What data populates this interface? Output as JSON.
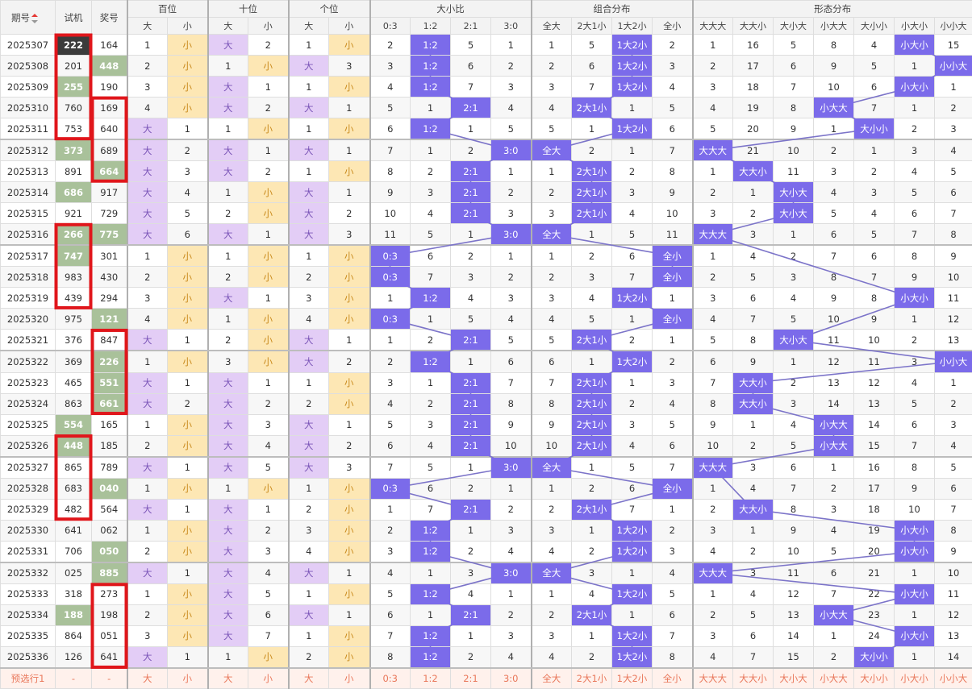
{
  "header": {
    "period_label": "期号",
    "test_label": "试机",
    "prize_label": "奖号",
    "groups": [
      "百位",
      "十位",
      "个位",
      "大小比",
      "组合分布",
      "形态分布"
    ],
    "sub_dx": [
      "大",
      "小"
    ],
    "ratio_cols": [
      "0:3",
      "1:2",
      "2:1",
      "3:0"
    ],
    "combo_cols": [
      "全大",
      "2大1小",
      "1大2小",
      "全小"
    ],
    "form_cols": [
      "大大大",
      "大大小",
      "大小大",
      "小大大",
      "大小小",
      "小大小",
      "小小大"
    ]
  },
  "rows": [
    {
      "p": "2025307",
      "t": "222",
      "z": "164",
      "tc": "dk",
      "zc": "",
      "pos": [
        [
          1,
          0
        ],
        [
          0,
          2
        ],
        [
          1,
          0
        ]
      ],
      "ratio": [
        2,
        "H",
        5,
        1
      ],
      "combo": [
        1,
        5,
        "H",
        2
      ],
      "form": [
        1,
        16,
        5,
        8,
        4,
        "H",
        15
      ]
    },
    {
      "p": "2025308",
      "t": "201",
      "z": "448",
      "tc": "",
      "zc": "g",
      "pos": [
        [
          2,
          0
        ],
        [
          1,
          0
        ],
        [
          0,
          3
        ]
      ],
      "ratio": [
        3,
        "H",
        6,
        2
      ],
      "combo": [
        2,
        6,
        "H",
        3
      ],
      "form": [
        2,
        17,
        6,
        9,
        5,
        1,
        "H"
      ]
    },
    {
      "p": "2025309",
      "t": "255",
      "z": "190",
      "tc": "g",
      "zc": "",
      "pos": [
        [
          3,
          0
        ],
        [
          0,
          1
        ],
        [
          1,
          0
        ]
      ],
      "ratio": [
        4,
        "H",
        7,
        3
      ],
      "combo": [
        3,
        7,
        "H",
        4
      ],
      "form": [
        3,
        18,
        7,
        10,
        6,
        "H",
        1
      ]
    },
    {
      "p": "2025310",
      "t": "760",
      "z": "169",
      "tc": "",
      "zc": "",
      "pos": [
        [
          4,
          0
        ],
        [
          0,
          2
        ],
        [
          0,
          1
        ]
      ],
      "ratio": [
        5,
        1,
        "H",
        4
      ],
      "combo": [
        4,
        "H",
        1,
        5
      ],
      "form": [
        4,
        19,
        8,
        "H",
        7,
        1,
        2
      ]
    },
    {
      "p": "2025311",
      "t": "753",
      "z": "640",
      "tc": "",
      "zc": "",
      "pos": [
        [
          0,
          1
        ],
        [
          1,
          0
        ],
        [
          1,
          0
        ]
      ],
      "ratio": [
        6,
        "H",
        1,
        5
      ],
      "combo": [
        5,
        1,
        "H",
        6
      ],
      "form": [
        5,
        20,
        9,
        1,
        "H",
        2,
        3
      ]
    },
    {
      "p": "2025312",
      "t": "373",
      "z": "689",
      "tc": "g",
      "zc": "",
      "pos": [
        [
          0,
          2
        ],
        [
          0,
          1
        ],
        [
          0,
          1
        ]
      ],
      "ratio": [
        7,
        1,
        2,
        "H"
      ],
      "combo": [
        "H",
        2,
        1,
        7
      ],
      "form": [
        "H",
        21,
        10,
        2,
        1,
        3,
        4
      ]
    },
    {
      "p": "2025313",
      "t": "891",
      "z": "664",
      "tc": "",
      "zc": "g",
      "pos": [
        [
          0,
          3
        ],
        [
          0,
          2
        ],
        [
          1,
          0
        ]
      ],
      "ratio": [
        8,
        2,
        "H",
        1
      ],
      "combo": [
        1,
        "H",
        2,
        8
      ],
      "form": [
        1,
        "H",
        11,
        3,
        2,
        4,
        5
      ]
    },
    {
      "p": "2025314",
      "t": "686",
      "z": "917",
      "tc": "g",
      "zc": "",
      "pos": [
        [
          0,
          4
        ],
        [
          1,
          0
        ],
        [
          0,
          1
        ]
      ],
      "ratio": [
        9,
        3,
        "H",
        2
      ],
      "combo": [
        2,
        "H",
        3,
        9
      ],
      "form": [
        2,
        1,
        "H",
        4,
        3,
        5,
        6
      ]
    },
    {
      "p": "2025315",
      "t": "921",
      "z": "729",
      "tc": "",
      "zc": "",
      "pos": [
        [
          0,
          5
        ],
        [
          2,
          0
        ],
        [
          0,
          2
        ]
      ],
      "ratio": [
        10,
        4,
        "H",
        3
      ],
      "combo": [
        3,
        "H",
        4,
        10
      ],
      "form": [
        3,
        2,
        "H",
        5,
        4,
        6,
        7
      ]
    },
    {
      "p": "2025316",
      "t": "266",
      "z": "775",
      "tc": "g",
      "zc": "g",
      "pos": [
        [
          0,
          6
        ],
        [
          0,
          1
        ],
        [
          0,
          3
        ]
      ],
      "ratio": [
        11,
        5,
        1,
        "H"
      ],
      "combo": [
        "H",
        1,
        5,
        11
      ],
      "form": [
        "H",
        3,
        1,
        6,
        5,
        7,
        8
      ]
    },
    {
      "p": "2025317",
      "t": "747",
      "z": "301",
      "tc": "g",
      "zc": "",
      "pos": [
        [
          1,
          0
        ],
        [
          1,
          0
        ],
        [
          1,
          0
        ]
      ],
      "ratio": [
        "H",
        6,
        2,
        1
      ],
      "combo": [
        1,
        2,
        6,
        "H"
      ],
      "form": [
        1,
        4,
        2,
        7,
        6,
        8,
        9
      ]
    },
    {
      "p": "2025318",
      "t": "983",
      "z": "430",
      "tc": "",
      "zc": "",
      "pos": [
        [
          2,
          0
        ],
        [
          2,
          0
        ],
        [
          2,
          0
        ]
      ],
      "ratio": [
        "H",
        7,
        3,
        2
      ],
      "combo": [
        2,
        3,
        7,
        "H"
      ],
      "form": [
        2,
        5,
        3,
        8,
        7,
        9,
        10
      ]
    },
    {
      "p": "2025319",
      "t": "439",
      "z": "294",
      "tc": "",
      "zc": "",
      "pos": [
        [
          3,
          0
        ],
        [
          0,
          1
        ],
        [
          3,
          0
        ]
      ],
      "ratio": [
        1,
        "H",
        4,
        3
      ],
      "combo": [
        3,
        4,
        "H",
        1
      ],
      "form": [
        3,
        6,
        4,
        9,
        8,
        "H",
        11
      ]
    },
    {
      "p": "2025320",
      "t": "975",
      "z": "121",
      "tc": "",
      "zc": "g",
      "pos": [
        [
          4,
          0
        ],
        [
          1,
          0
        ],
        [
          4,
          0
        ]
      ],
      "ratio": [
        "H",
        1,
        5,
        4
      ],
      "combo": [
        4,
        5,
        1,
        "H"
      ],
      "form": [
        4,
        7,
        5,
        10,
        9,
        1,
        12
      ]
    },
    {
      "p": "2025321",
      "t": "376",
      "z": "847",
      "tc": "",
      "zc": "",
      "pos": [
        [
          0,
          1
        ],
        [
          2,
          0
        ],
        [
          0,
          1
        ]
      ],
      "ratio": [
        1,
        2,
        "H",
        5
      ],
      "combo": [
        5,
        "H",
        2,
        1
      ],
      "form": [
        5,
        8,
        "H",
        11,
        10,
        2,
        13
      ]
    },
    {
      "p": "2025322",
      "t": "369",
      "z": "226",
      "tc": "",
      "zc": "g",
      "pos": [
        [
          1,
          0
        ],
        [
          3,
          0
        ],
        [
          0,
          2
        ]
      ],
      "ratio": [
        2,
        "H",
        1,
        6
      ],
      "combo": [
        6,
        1,
        "H",
        2
      ],
      "form": [
        6,
        9,
        1,
        12,
        11,
        3,
        "H"
      ]
    },
    {
      "p": "2025323",
      "t": "465",
      "z": "551",
      "tc": "",
      "zc": "g",
      "pos": [
        [
          0,
          1
        ],
        [
          0,
          1
        ],
        [
          1,
          0
        ]
      ],
      "ratio": [
        3,
        1,
        "H",
        7
      ],
      "combo": [
        7,
        "H",
        1,
        3
      ],
      "form": [
        7,
        "H",
        2,
        13,
        12,
        4,
        1
      ]
    },
    {
      "p": "2025324",
      "t": "863",
      "z": "661",
      "tc": "",
      "zc": "g",
      "pos": [
        [
          0,
          2
        ],
        [
          0,
          2
        ],
        [
          2,
          0
        ]
      ],
      "ratio": [
        4,
        2,
        "H",
        8
      ],
      "combo": [
        8,
        "H",
        2,
        4
      ],
      "form": [
        8,
        "H",
        3,
        14,
        13,
        5,
        2
      ]
    },
    {
      "p": "2025325",
      "t": "554",
      "z": "165",
      "tc": "g",
      "zc": "",
      "pos": [
        [
          1,
          0
        ],
        [
          0,
          3
        ],
        [
          0,
          1
        ]
      ],
      "ratio": [
        5,
        3,
        "H",
        9
      ],
      "combo": [
        9,
        "H",
        3,
        5
      ],
      "form": [
        9,
        1,
        4,
        "H",
        14,
        6,
        3
      ]
    },
    {
      "p": "2025326",
      "t": "448",
      "z": "185",
      "tc": "g",
      "zc": "",
      "pos": [
        [
          2,
          0
        ],
        [
          0,
          4
        ],
        [
          0,
          2
        ]
      ],
      "ratio": [
        6,
        4,
        "H",
        10
      ],
      "combo": [
        10,
        "H",
        4,
        6
      ],
      "form": [
        10,
        2,
        5,
        "H",
        15,
        7,
        4
      ]
    },
    {
      "p": "2025327",
      "t": "865",
      "z": "789",
      "tc": "",
      "zc": "",
      "pos": [
        [
          0,
          1
        ],
        [
          0,
          5
        ],
        [
          0,
          3
        ]
      ],
      "ratio": [
        7,
        5,
        1,
        "H"
      ],
      "combo": [
        "H",
        1,
        5,
        7
      ],
      "form": [
        "H",
        3,
        6,
        1,
        16,
        8,
        5
      ]
    },
    {
      "p": "2025328",
      "t": "683",
      "z": "040",
      "tc": "",
      "zc": "g",
      "pos": [
        [
          1,
          0
        ],
        [
          1,
          0
        ],
        [
          1,
          0
        ]
      ],
      "ratio": [
        "H",
        6,
        2,
        1
      ],
      "combo": [
        1,
        2,
        6,
        "H"
      ],
      "form": [
        1,
        4,
        7,
        2,
        17,
        9,
        6
      ]
    },
    {
      "p": "2025329",
      "t": "482",
      "z": "564",
      "tc": "",
      "zc": "",
      "pos": [
        [
          0,
          1
        ],
        [
          0,
          1
        ],
        [
          2,
          0
        ]
      ],
      "ratio": [
        1,
        7,
        "H",
        2
      ],
      "combo": [
        2,
        "H",
        7,
        1
      ],
      "form": [
        2,
        "H",
        8,
        3,
        18,
        10,
        7
      ]
    },
    {
      "p": "2025330",
      "t": "641",
      "z": "062",
      "tc": "",
      "zc": "",
      "pos": [
        [
          1,
          0
        ],
        [
          0,
          2
        ],
        [
          3,
          0
        ]
      ],
      "ratio": [
        2,
        "H",
        1,
        3
      ],
      "combo": [
        3,
        1,
        "H",
        2
      ],
      "form": [
        3,
        1,
        9,
        4,
        19,
        "H",
        8
      ]
    },
    {
      "p": "2025331",
      "t": "706",
      "z": "050",
      "tc": "",
      "zc": "g",
      "pos": [
        [
          2,
          0
        ],
        [
          0,
          3
        ],
        [
          4,
          0
        ]
      ],
      "ratio": [
        3,
        "H",
        2,
        4
      ],
      "combo": [
        4,
        2,
        "H",
        3
      ],
      "form": [
        4,
        2,
        10,
        5,
        20,
        "H",
        9
      ]
    },
    {
      "p": "2025332",
      "t": "025",
      "z": "885",
      "tc": "",
      "zc": "g",
      "pos": [
        [
          0,
          1
        ],
        [
          0,
          4
        ],
        [
          0,
          1
        ]
      ],
      "ratio": [
        4,
        1,
        3,
        "H"
      ],
      "combo": [
        "H",
        3,
        1,
        4
      ],
      "form": [
        "H",
        3,
        11,
        6,
        21,
        1,
        10
      ]
    },
    {
      "p": "2025333",
      "t": "318",
      "z": "273",
      "tc": "",
      "zc": "",
      "pos": [
        [
          1,
          0
        ],
        [
          0,
          5
        ],
        [
          1,
          0
        ]
      ],
      "ratio": [
        5,
        "H",
        4,
        1
      ],
      "combo": [
        1,
        4,
        "H",
        5
      ],
      "form": [
        1,
        4,
        12,
        7,
        22,
        "H",
        11
      ]
    },
    {
      "p": "2025334",
      "t": "188",
      "z": "198",
      "tc": "g",
      "zc": "",
      "pos": [
        [
          2,
          0
        ],
        [
          0,
          6
        ],
        [
          0,
          1
        ]
      ],
      "ratio": [
        6,
        1,
        "H",
        2
      ],
      "combo": [
        2,
        "H",
        1,
        6
      ],
      "form": [
        2,
        5,
        13,
        "H",
        23,
        1,
        12
      ]
    },
    {
      "p": "2025335",
      "t": "864",
      "z": "051",
      "tc": "",
      "zc": "",
      "pos": [
        [
          3,
          0
        ],
        [
          0,
          7
        ],
        [
          1,
          0
        ]
      ],
      "ratio": [
        7,
        "H",
        1,
        3
      ],
      "combo": [
        3,
        1,
        "H",
        7
      ],
      "form": [
        3,
        6,
        14,
        1,
        24,
        "H",
        13
      ]
    },
    {
      "p": "2025336",
      "t": "126",
      "z": "641",
      "tc": "",
      "zc": "",
      "pos": [
        [
          0,
          1
        ],
        [
          1,
          0
        ],
        [
          2,
          0
        ]
      ],
      "ratio": [
        8,
        "H",
        2,
        4
      ],
      "combo": [
        4,
        2,
        "H",
        8
      ],
      "form": [
        4,
        7,
        15,
        2,
        "H",
        1,
        14
      ]
    }
  ],
  "predict": {
    "label": "预选行1",
    "dash": "-",
    "pos": [
      "大",
      "小",
      "大",
      "小",
      "大",
      "小"
    ],
    "ratio": [
      "0:3",
      "1:2",
      "2:1",
      "3:0"
    ],
    "combo": [
      "全大",
      "2大1小",
      "1大2小",
      "全小"
    ],
    "form": [
      "大大大",
      "大大小",
      "大小大",
      "小大大",
      "大小小",
      "小大小",
      "小小大"
    ]
  },
  "colors": {
    "hit": "#7b6bea",
    "line": "#7c74c9",
    "da": "#e3cdf6",
    "xiao": "#fde7b4",
    "green": "#a9c19a",
    "box": "#e0161b"
  },
  "highlight_boxes": [
    {
      "col": "test",
      "from": 0,
      "to": 4
    },
    {
      "col": "prize",
      "from": 3,
      "to": 6
    },
    {
      "col": "test",
      "from": 9,
      "to": 12
    },
    {
      "col": "prize",
      "from": 14,
      "to": 17
    },
    {
      "col": "test",
      "from": 19,
      "to": 22
    },
    {
      "col": "prize",
      "from": 26,
      "to": 29
    }
  ]
}
